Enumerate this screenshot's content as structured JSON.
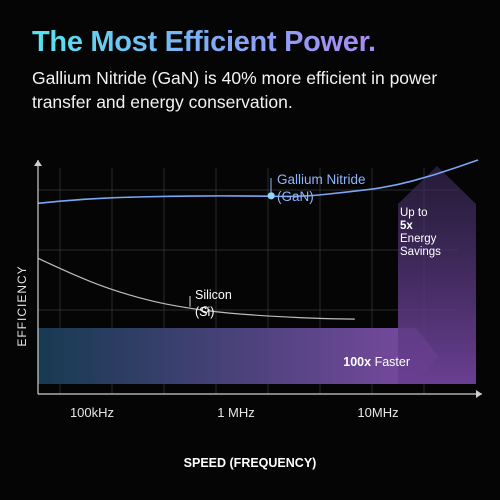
{
  "header": {
    "title": "The Most Efficient Power.",
    "subtitle": "Gallium Nitride (GaN) is 40% more efficient in power transfer and energy conservation."
  },
  "chart_data": {
    "type": "line",
    "xlabel": "SPEED (FREQUENCY)",
    "ylabel": "EFFICIENCY",
    "x_ticks": [
      "100kHz",
      "1 MHz",
      "10MHz"
    ],
    "x_scale": "log",
    "y_ticks": [],
    "grid": true,
    "series": [
      {
        "name": "Gallium Nitride (GaN)",
        "color": "#7aa6f5",
        "label_lines": [
          "Gallium Nitride",
          "(GaN)"
        ],
        "label_color": "#8fb4ff",
        "points": [
          [
            0.0,
            0.815
          ],
          [
            0.1,
            0.833
          ],
          [
            0.2,
            0.841
          ],
          [
            0.3,
            0.845
          ],
          [
            0.4,
            0.847
          ],
          [
            0.5,
            0.846
          ],
          [
            0.6,
            0.843
          ],
          [
            0.7,
            0.862
          ],
          [
            0.8,
            0.885
          ],
          [
            0.9,
            0.935
          ],
          [
            1.0,
            1.0
          ]
        ],
        "marker": [
          0.53,
          0.847
        ]
      },
      {
        "name": "Silicon (Si)",
        "color": "#bdbdbd",
        "label_lines": [
          "Silicon",
          "(Si)"
        ],
        "label_color": "#ffffff",
        "points": [
          [
            0.0,
            0.58
          ],
          [
            0.08,
            0.51
          ],
          [
            0.16,
            0.45
          ],
          [
            0.25,
            0.4
          ],
          [
            0.33,
            0.37
          ],
          [
            0.43,
            0.345
          ],
          [
            0.55,
            0.33
          ],
          [
            0.65,
            0.322
          ],
          [
            0.72,
            0.32
          ]
        ],
        "marker": [
          0.38,
          0.36
        ]
      }
    ],
    "annotations": [
      {
        "text": "100x Faster",
        "bold_part": "100x"
      },
      {
        "lines": [
          "Up to",
          "5x",
          "Energy",
          "Savings"
        ],
        "bold_lines": [
          1
        ]
      }
    ],
    "colors": {
      "axis": "#cfcfcf",
      "grid": "#2b2b2b",
      "band_left": "#173a52",
      "band_right": "#7d4aa3",
      "arrow_bottom": "#6a3f92",
      "arrow_top": "#3a2a5a"
    }
  }
}
